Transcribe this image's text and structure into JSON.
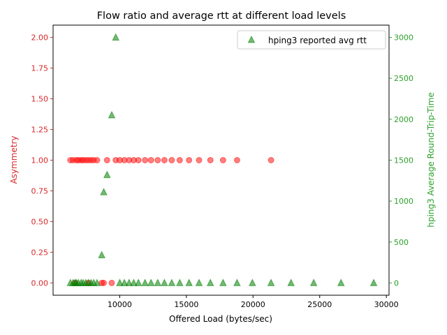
{
  "chart_data": {
    "type": "scatter",
    "title": "Flow ratio and average rtt at different load levels",
    "xlabel": "Offered Load (bytes/sec)",
    "ylabel_left": "Asymmetry",
    "ylabel_right": "hping3 Average Round-Trip-Time",
    "xlim": [
      5000,
      30200
    ],
    "ylim_left": [
      -0.1,
      2.1
    ],
    "ylim_right": [
      -150,
      3150
    ],
    "x_ticks": [
      10000,
      15000,
      20000,
      25000,
      30000
    ],
    "x_tick_labels": [
      "10000",
      "15000",
      "20000",
      "25000",
      "30000"
    ],
    "y_left_ticks": [
      0,
      0.25,
      0.5,
      0.75,
      1.0,
      1.25,
      1.5,
      1.75,
      2.0
    ],
    "y_left_tick_labels": [
      "0.00",
      "0.25",
      "0.50",
      "0.75",
      "1.00",
      "1.25",
      "1.50",
      "1.75",
      "2.00"
    ],
    "y_right_ticks": [
      0,
      500,
      1000,
      1500,
      2000,
      2500,
      3000
    ],
    "y_right_tick_labels": [
      "0",
      "500",
      "1000",
      "1500",
      "2000",
      "2500",
      "3000"
    ],
    "legend_position": "top-right",
    "grid": false,
    "colors": {
      "left_axis": "#d62728",
      "right_axis": "#2ca02c",
      "asymmetry_marker": "#ff0000",
      "rtt_marker": "#008000"
    },
    "series": [
      {
        "axis": "left",
        "marker": "circle",
        "points": [
          [
            6300,
            1.0
          ],
          [
            6500,
            1.0
          ],
          [
            6650,
            0.0
          ],
          [
            6750,
            1.0
          ],
          [
            6900,
            1.0
          ],
          [
            7100,
            1.0
          ],
          [
            7250,
            1.0
          ],
          [
            7450,
            1.0
          ],
          [
            7650,
            1.0
          ],
          [
            7650,
            0.0
          ],
          [
            7850,
            1.0
          ],
          [
            8050,
            1.0
          ],
          [
            8300,
            1.0
          ],
          [
            8650,
            0.0
          ],
          [
            8800,
            0.0
          ],
          [
            9050,
            1.0
          ],
          [
            9400,
            0.0
          ],
          [
            9700,
            1.0
          ],
          [
            10000,
            1.0
          ],
          [
            10350,
            1.0
          ],
          [
            10700,
            1.0
          ],
          [
            11050,
            1.0
          ],
          [
            11400,
            1.0
          ],
          [
            11900,
            1.0
          ],
          [
            12350,
            1.0
          ],
          [
            12850,
            1.0
          ],
          [
            13350,
            1.0
          ],
          [
            13900,
            1.0
          ],
          [
            14500,
            1.0
          ],
          [
            15200,
            1.0
          ],
          [
            15950,
            1.0
          ],
          [
            16800,
            1.0
          ],
          [
            17750,
            1.0
          ],
          [
            18800,
            1.0
          ],
          [
            21350,
            1.0
          ]
        ]
      },
      {
        "name": "hping3 reported avg rtt",
        "axis": "right",
        "marker": "triangle",
        "points": [
          [
            6300,
            0
          ],
          [
            6500,
            0
          ],
          [
            6650,
            0
          ],
          [
            6750,
            0
          ],
          [
            6900,
            0
          ],
          [
            7100,
            0
          ],
          [
            7250,
            0
          ],
          [
            7450,
            0
          ],
          [
            7650,
            0
          ],
          [
            7850,
            0
          ],
          [
            8050,
            0
          ],
          [
            8300,
            0
          ],
          [
            8650,
            340
          ],
          [
            8800,
            1110
          ],
          [
            9050,
            1320
          ],
          [
            9400,
            2050
          ],
          [
            9700,
            3000
          ],
          [
            10000,
            0
          ],
          [
            10350,
            0
          ],
          [
            10700,
            0
          ],
          [
            11050,
            0
          ],
          [
            11400,
            0
          ],
          [
            11900,
            0
          ],
          [
            12350,
            0
          ],
          [
            12850,
            0
          ],
          [
            13350,
            0
          ],
          [
            13900,
            0
          ],
          [
            14500,
            0
          ],
          [
            15200,
            0
          ],
          [
            15950,
            0
          ],
          [
            16800,
            0
          ],
          [
            17750,
            0
          ],
          [
            18800,
            0
          ],
          [
            19950,
            0
          ],
          [
            21350,
            0
          ],
          [
            22850,
            0
          ],
          [
            24550,
            0
          ],
          [
            26600,
            0
          ],
          [
            29050,
            0
          ]
        ]
      }
    ]
  }
}
